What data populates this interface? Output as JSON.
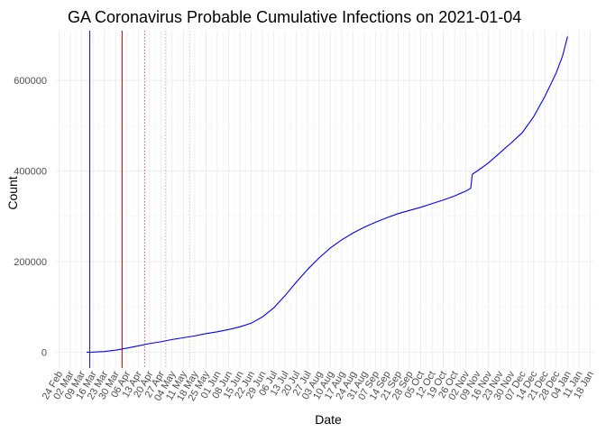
{
  "chart_data": {
    "type": "line",
    "title": "GA Coronavirus Probable Cumulative Infections on 2021-01-04",
    "xlabel": "Date",
    "ylabel": "Count",
    "x_range": [
      "2020-02-22",
      "2021-01-20"
    ],
    "ylim": [
      -35000,
      710000
    ],
    "grid": true,
    "legend": "none",
    "x_ticks": [
      {
        "date": "2020-02-24",
        "label": "24 Feb"
      },
      {
        "date": "2020-03-02",
        "label": "02 Mar"
      },
      {
        "date": "2020-03-09",
        "label": "09 Mar"
      },
      {
        "date": "2020-03-16",
        "label": "16 Mar"
      },
      {
        "date": "2020-03-23",
        "label": "23 Mar"
      },
      {
        "date": "2020-03-30",
        "label": "30 Mar"
      },
      {
        "date": "2020-04-06",
        "label": "06 Apr"
      },
      {
        "date": "2020-04-13",
        "label": "13 Apr"
      },
      {
        "date": "2020-04-20",
        "label": "20 Apr"
      },
      {
        "date": "2020-04-27",
        "label": "27 Apr"
      },
      {
        "date": "2020-05-04",
        "label": "04 May"
      },
      {
        "date": "2020-05-11",
        "label": "11 May"
      },
      {
        "date": "2020-05-18",
        "label": "18 May"
      },
      {
        "date": "2020-05-25",
        "label": "25 May"
      },
      {
        "date": "2020-06-01",
        "label": "01 Jun"
      },
      {
        "date": "2020-06-08",
        "label": "08 Jun"
      },
      {
        "date": "2020-06-15",
        "label": "15 Jun"
      },
      {
        "date": "2020-06-22",
        "label": "22 Jun"
      },
      {
        "date": "2020-06-29",
        "label": "29 Jun"
      },
      {
        "date": "2020-07-06",
        "label": "06 Jul"
      },
      {
        "date": "2020-07-13",
        "label": "13 Jul"
      },
      {
        "date": "2020-07-20",
        "label": "20 Jul"
      },
      {
        "date": "2020-07-27",
        "label": "27 Jul"
      },
      {
        "date": "2020-08-03",
        "label": "03 Aug"
      },
      {
        "date": "2020-08-10",
        "label": "10 Aug"
      },
      {
        "date": "2020-08-17",
        "label": "17 Aug"
      },
      {
        "date": "2020-08-24",
        "label": "24 Aug"
      },
      {
        "date": "2020-08-31",
        "label": "31 Aug"
      },
      {
        "date": "2020-09-07",
        "label": "07 Sep"
      },
      {
        "date": "2020-09-14",
        "label": "14 Sep"
      },
      {
        "date": "2020-09-21",
        "label": "21 Sep"
      },
      {
        "date": "2020-09-28",
        "label": "28 Sep"
      },
      {
        "date": "2020-10-05",
        "label": "05 Oct"
      },
      {
        "date": "2020-10-12",
        "label": "12 Oct"
      },
      {
        "date": "2020-10-19",
        "label": "19 Oct"
      },
      {
        "date": "2020-10-26",
        "label": "26 Oct"
      },
      {
        "date": "2020-11-02",
        "label": "02 Nov"
      },
      {
        "date": "2020-11-09",
        "label": "09 Nov"
      },
      {
        "date": "2020-11-16",
        "label": "16 Nov"
      },
      {
        "date": "2020-11-23",
        "label": "23 Nov"
      },
      {
        "date": "2020-11-30",
        "label": "30 Nov"
      },
      {
        "date": "2020-12-07",
        "label": "07 Dec"
      },
      {
        "date": "2020-12-14",
        "label": "14 Dec"
      },
      {
        "date": "2020-12-21",
        "label": "21 Dec"
      },
      {
        "date": "2020-12-28",
        "label": "28 Dec"
      },
      {
        "date": "2021-01-04",
        "label": "04 Jan"
      },
      {
        "date": "2021-01-11",
        "label": "11 Jan"
      },
      {
        "date": "2021-01-18",
        "label": "18 Jan"
      }
    ],
    "y_ticks": [
      {
        "value": 0,
        "label": "0"
      },
      {
        "value": 200000,
        "label": "200000"
      },
      {
        "value": 400000,
        "label": "400000"
      },
      {
        "value": 600000,
        "label": "600000"
      }
    ],
    "series": [
      {
        "color": "#0000ff",
        "points": [
          [
            "2020-03-12",
            0
          ],
          [
            "2020-03-16",
            200
          ],
          [
            "2020-03-23",
            1500
          ],
          [
            "2020-03-30",
            4500
          ],
          [
            "2020-04-06",
            9000
          ],
          [
            "2020-04-13",
            14000
          ],
          [
            "2020-04-20",
            19000
          ],
          [
            "2020-04-27",
            23000
          ],
          [
            "2020-05-04",
            28000
          ],
          [
            "2020-05-11",
            32000
          ],
          [
            "2020-05-18",
            36000
          ],
          [
            "2020-05-25",
            41000
          ],
          [
            "2020-06-01",
            45000
          ],
          [
            "2020-06-08",
            50000
          ],
          [
            "2020-06-15",
            56000
          ],
          [
            "2020-06-22",
            64000
          ],
          [
            "2020-06-29",
            78000
          ],
          [
            "2020-07-06",
            98000
          ],
          [
            "2020-07-13",
            125000
          ],
          [
            "2020-07-20",
            155000
          ],
          [
            "2020-07-27",
            183000
          ],
          [
            "2020-08-03",
            208000
          ],
          [
            "2020-08-10",
            230000
          ],
          [
            "2020-08-17",
            248000
          ],
          [
            "2020-08-24",
            263000
          ],
          [
            "2020-08-31",
            276000
          ],
          [
            "2020-09-07",
            287000
          ],
          [
            "2020-09-14",
            297000
          ],
          [
            "2020-09-21",
            306000
          ],
          [
            "2020-09-28",
            313000
          ],
          [
            "2020-10-05",
            320000
          ],
          [
            "2020-10-12",
            328000
          ],
          [
            "2020-10-19",
            336000
          ],
          [
            "2020-10-26",
            345000
          ],
          [
            "2020-11-02",
            356000
          ],
          [
            "2020-11-05",
            362000
          ],
          [
            "2020-11-06",
            393000
          ],
          [
            "2020-11-09",
            400000
          ],
          [
            "2020-11-16",
            418000
          ],
          [
            "2020-11-23",
            440000
          ],
          [
            "2020-11-30",
            462000
          ],
          [
            "2020-12-07",
            485000
          ],
          [
            "2020-12-14",
            520000
          ],
          [
            "2020-12-21",
            565000
          ],
          [
            "2020-12-28",
            617000
          ],
          [
            "2021-01-01",
            655000
          ],
          [
            "2021-01-04",
            697000
          ]
        ]
      }
    ],
    "reference_lines": [
      {
        "date": "2020-03-14",
        "color": "#0000ff",
        "style": "solid"
      },
      {
        "date": "2020-04-03",
        "color": "#cc0000",
        "style": "solid"
      },
      {
        "date": "2020-04-17",
        "color": "#ee5555",
        "style": "dotted"
      },
      {
        "date": "2020-04-30",
        "color": "#f4a0a0",
        "style": "dotted"
      },
      {
        "date": "2020-05-15",
        "color": "#f6c6c6",
        "style": "dotted"
      }
    ]
  }
}
